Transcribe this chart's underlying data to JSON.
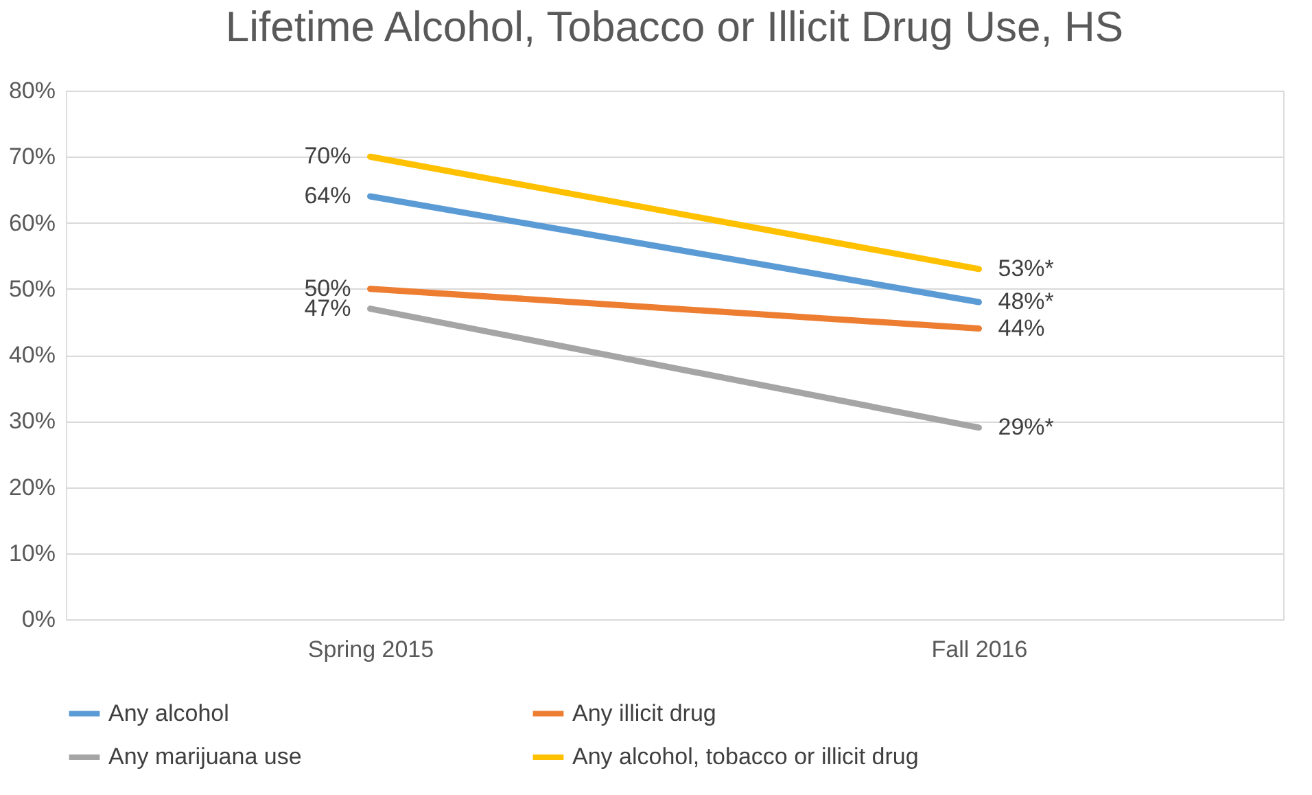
{
  "chart_data": {
    "type": "line",
    "title": "Lifetime Alcohol, Tobacco or Illicit Drug Use, HS",
    "categories": [
      "Spring 2015",
      "Fall 2016"
    ],
    "series": [
      {
        "name": "Any alcohol",
        "color": "#5b9bd5",
        "values": [
          64,
          48
        ],
        "value_labels": [
          "64%",
          "48%*"
        ]
      },
      {
        "name": "Any illicit drug",
        "color": "#ed7d31",
        "values": [
          50,
          44
        ],
        "value_labels": [
          "50%",
          "44%"
        ]
      },
      {
        "name": "Any marijuana use",
        "color": "#a5a5a5",
        "values": [
          47,
          29
        ],
        "value_labels": [
          "47%",
          "29%*"
        ]
      },
      {
        "name": "Any alcohol, tobacco or illicit drug",
        "color": "#ffc000",
        "values": [
          70,
          53
        ],
        "value_labels": [
          "70%",
          "53%*"
        ]
      }
    ],
    "ylim": [
      0,
      80
    ],
    "yticks": [
      {
        "value": 0,
        "label": "0%"
      },
      {
        "value": 10,
        "label": "10%"
      },
      {
        "value": 20,
        "label": "20%"
      },
      {
        "value": 30,
        "label": "30%"
      },
      {
        "value": 40,
        "label": "40%"
      },
      {
        "value": 50,
        "label": "50%"
      },
      {
        "value": 60,
        "label": "60%"
      },
      {
        "value": 70,
        "label": "70%"
      },
      {
        "value": 80,
        "label": "80%"
      }
    ],
    "grid": "y",
    "legend": "bottom",
    "marker": "none",
    "line_style": "solid"
  }
}
